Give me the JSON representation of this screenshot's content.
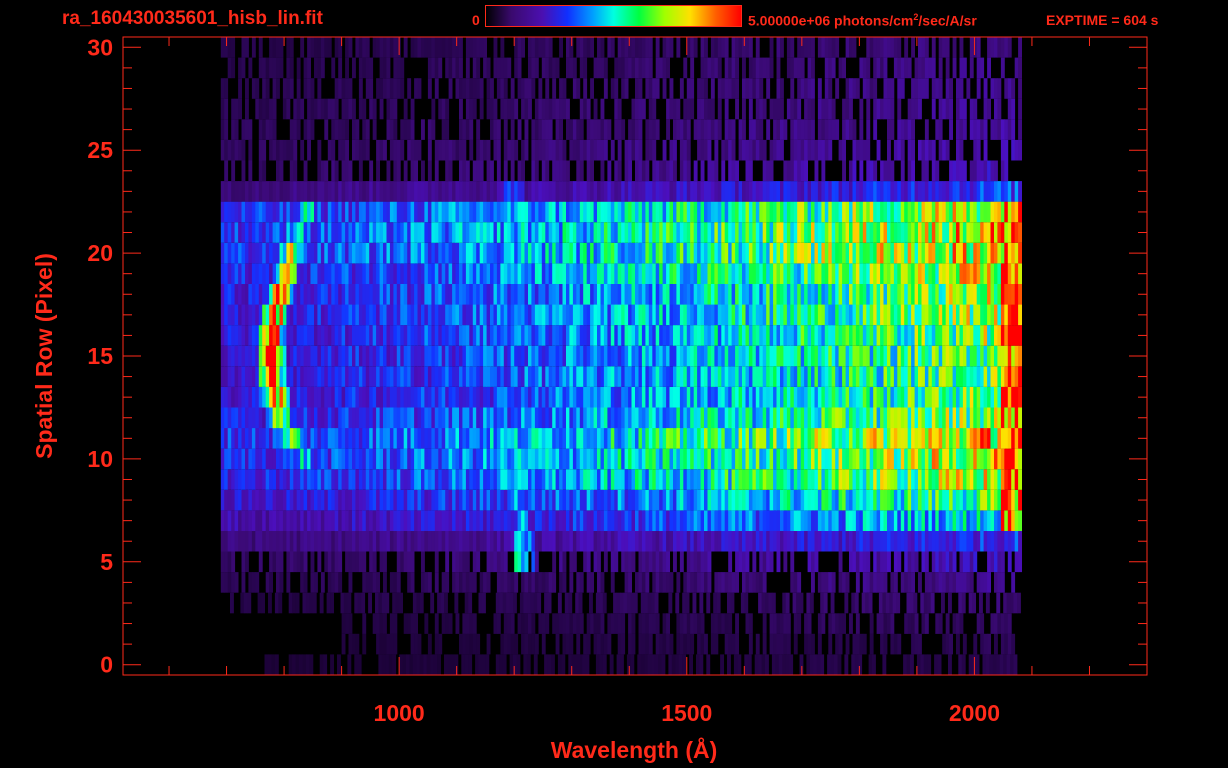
{
  "header": {
    "file_title": "ra_160430035601_hisb_lin.fit",
    "colorbar_min": "0",
    "colorbar_max_value": "5.00000e+06 photons/cm",
    "colorbar_max_exp": "2",
    "colorbar_max_unit": "/sec/A/sr",
    "exptime": "EXPTIME = 604 s"
  },
  "colors": {
    "accent": "#ff2a1a",
    "background": "#000000"
  },
  "chart_data": {
    "type": "heatmap",
    "xlabel": "Wavelength (Å)",
    "ylabel": "Spatial Row (Pixel)",
    "xlim": [
      520,
      2300
    ],
    "ylim": [
      -0.5,
      30.5
    ],
    "x_ticks": [
      1000,
      1500,
      2000
    ],
    "y_ticks": [
      0,
      5,
      10,
      15,
      20,
      25,
      30
    ],
    "colorbar": {
      "min": 0,
      "max": 5000000,
      "unit": "photons/cm²/sec/A/sr"
    },
    "rows": [
      {
        "y": 0,
        "x0": 760,
        "x1": 2070,
        "peaks": [],
        "base": 0.05
      },
      {
        "y": 1,
        "x0": 900,
        "x1": 2070,
        "peaks": [],
        "base": 0.06
      },
      {
        "y": 2,
        "x0": 900,
        "x1": 2070,
        "peaks": [],
        "base": 0.08
      },
      {
        "y": 3,
        "x0": 700,
        "x1": 2080,
        "peaks": [],
        "base": 0.1
      },
      {
        "y": 4,
        "x0": 690,
        "x1": 2080,
        "peaks": [],
        "base": 0.14
      },
      {
        "y": 5,
        "x0": 690,
        "x1": 2080,
        "peaks": [
          [
            1210,
            0.55
          ]
        ],
        "base": 0.2
      },
      {
        "y": 6,
        "x0": 690,
        "x1": 2080,
        "peaks": [
          [
            1210,
            0.5
          ]
        ],
        "base": 0.28
      },
      {
        "y": 7,
        "x0": 690,
        "x1": 2080,
        "peaks": [
          [
            1210,
            0.45
          ]
        ],
        "base": 0.45
      },
      {
        "y": 8,
        "x0": 690,
        "x1": 2080,
        "peaks": [
          [
            1205,
            0.45
          ]
        ],
        "base": 0.55
      },
      {
        "y": 9,
        "x0": 690,
        "x1": 2080,
        "peaks": [
          [
            1205,
            0.45
          ]
        ],
        "base": 0.65
      },
      {
        "y": 10,
        "x0": 690,
        "x1": 2080,
        "peaks": [
          [
            830,
            0.5
          ],
          [
            1205,
            0.45
          ]
        ],
        "base": 0.68
      },
      {
        "y": 11,
        "x0": 690,
        "x1": 2080,
        "peaks": [
          [
            810,
            0.65
          ],
          [
            1200,
            0.45
          ]
        ],
        "base": 0.72
      },
      {
        "y": 12,
        "x0": 690,
        "x1": 2080,
        "peaks": [
          [
            790,
            0.8
          ],
          [
            1200,
            0.42
          ]
        ],
        "base": 0.62
      },
      {
        "y": 13,
        "x0": 690,
        "x1": 2080,
        "peaks": [
          [
            780,
            0.95
          ],
          [
            1200,
            0.42
          ]
        ],
        "base": 0.58
      },
      {
        "y": 14,
        "x0": 690,
        "x1": 2080,
        "peaks": [
          [
            775,
            1.0
          ],
          [
            1200,
            0.42
          ]
        ],
        "base": 0.58
      },
      {
        "y": 15,
        "x0": 690,
        "x1": 2080,
        "peaks": [
          [
            775,
            1.0
          ],
          [
            1200,
            0.4
          ]
        ],
        "base": 0.58
      },
      {
        "y": 16,
        "x0": 690,
        "x1": 2080,
        "peaks": [
          [
            775,
            1.0
          ],
          [
            1200,
            0.4
          ]
        ],
        "base": 0.6
      },
      {
        "y": 17,
        "x0": 690,
        "x1": 2080,
        "peaks": [
          [
            780,
            0.95
          ],
          [
            1195,
            0.4
          ]
        ],
        "base": 0.62
      },
      {
        "y": 18,
        "x0": 690,
        "x1": 2080,
        "peaks": [
          [
            790,
            0.9
          ],
          [
            1195,
            0.4
          ]
        ],
        "base": 0.62
      },
      {
        "y": 19,
        "x0": 690,
        "x1": 2080,
        "peaks": [
          [
            800,
            0.8
          ],
          [
            1195,
            0.4
          ]
        ],
        "base": 0.66
      },
      {
        "y": 20,
        "x0": 690,
        "x1": 2080,
        "peaks": [
          [
            810,
            0.7
          ],
          [
            1195,
            0.4
          ]
        ],
        "base": 0.72
      },
      {
        "y": 21,
        "x0": 690,
        "x1": 2080,
        "peaks": [
          [
            820,
            0.6
          ],
          [
            1195,
            0.4
          ]
        ],
        "base": 0.72
      },
      {
        "y": 22,
        "x0": 690,
        "x1": 2080,
        "peaks": [
          [
            840,
            0.5
          ],
          [
            1195,
            0.4
          ]
        ],
        "base": 0.68
      },
      {
        "y": 23,
        "x0": 690,
        "x1": 2080,
        "peaks": [
          [
            1195,
            0.38
          ]
        ],
        "base": 0.3
      },
      {
        "y": 24,
        "x0": 690,
        "x1": 2080,
        "peaks": [],
        "base": 0.2
      },
      {
        "y": 25,
        "x0": 690,
        "x1": 2080,
        "peaks": [],
        "base": 0.18
      },
      {
        "y": 26,
        "x0": 690,
        "x1": 2080,
        "peaks": [],
        "base": 0.16
      },
      {
        "y": 27,
        "x0": 690,
        "x1": 2080,
        "peaks": [],
        "base": 0.15
      },
      {
        "y": 28,
        "x0": 690,
        "x1": 2080,
        "peaks": [],
        "base": 0.14
      },
      {
        "y": 29,
        "x0": 690,
        "x1": 2080,
        "peaks": [],
        "base": 0.13
      },
      {
        "y": 30,
        "x0": 690,
        "x1": 2080,
        "peaks": [],
        "base": 0.12
      }
    ]
  }
}
